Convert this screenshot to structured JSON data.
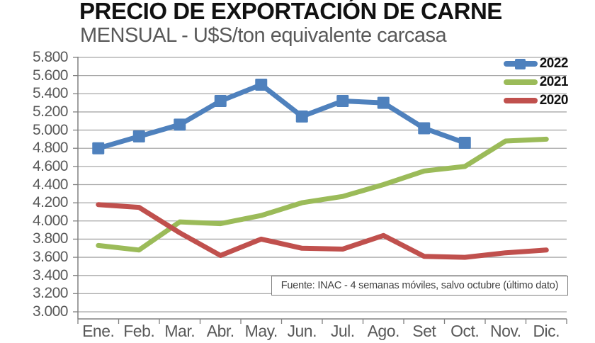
{
  "chart_data": {
    "type": "line",
    "title": "PRECIO DE EXPORTACIÓN DE CARNE",
    "subtitle": "MENSUAL - U$S/ton equivalente carcasa",
    "source_note": "Fuente: INAC - 4 semanas móviles, salvo octubre (último dato)",
    "categories": [
      "Ene.",
      "Feb.",
      "Mar.",
      "Abr.",
      "May.",
      "Jun.",
      "Jul.",
      "Ago.",
      "Set",
      "Oct.",
      "Nov.",
      "Dic."
    ],
    "y_ticks": [
      "5.800",
      "5.600",
      "5.400",
      "5.200",
      "5.000",
      "4.800",
      "4.600",
      "4.400",
      "4.200",
      "4.000",
      "3.800",
      "3.600",
      "3.400",
      "3.200",
      "3.000"
    ],
    "ylim": [
      3000,
      5800
    ],
    "y_step": 200,
    "grid": true,
    "legend_position": "top-right",
    "series": [
      {
        "name": "2022",
        "color": "#4F81BD",
        "marker": "square",
        "values": [
          4800,
          4930,
          5060,
          5320,
          5500,
          5150,
          5320,
          5300,
          5020,
          4860,
          null,
          null
        ]
      },
      {
        "name": "2021",
        "color": "#9BBB59",
        "marker": "none",
        "values": [
          3730,
          3680,
          3990,
          3970,
          4060,
          4200,
          4270,
          4400,
          4550,
          4600,
          4880,
          4900
        ]
      },
      {
        "name": "2020",
        "color": "#C0504D",
        "marker": "none",
        "values": [
          4180,
          4150,
          3870,
          3620,
          3800,
          3700,
          3690,
          3840,
          3610,
          3600,
          3650,
          3680
        ]
      }
    ],
    "axis_color": "#808080",
    "gridline_color": "#A8A8A8",
    "label_color": "#595959"
  }
}
